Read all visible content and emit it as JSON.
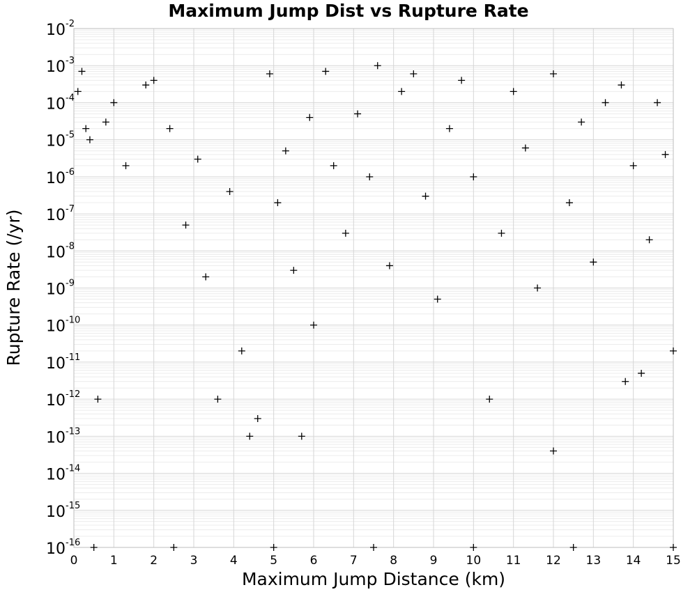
{
  "chart_data": {
    "type": "scatter",
    "title": "Maximum Jump Dist vs Rupture Rate",
    "xlabel": "Maximum Jump Distance (km)",
    "ylabel": "Rupture Rate (/yr)",
    "xlim": [
      0,
      15
    ],
    "ylim": [
      1e-16,
      0.01
    ],
    "yscale": "log",
    "marker": "plus",
    "marker_color": "#000000",
    "grid": true,
    "x_ticks": [
      "0",
      "1",
      "2",
      "3",
      "4",
      "5",
      "6",
      "7",
      "8",
      "9",
      "10",
      "11",
      "12",
      "13",
      "14",
      "15"
    ],
    "y_ticks": [
      {
        "base": "10",
        "exp": "-2"
      },
      {
        "base": "10",
        "exp": "-3"
      },
      {
        "base": "10",
        "exp": "-4"
      },
      {
        "base": "10",
        "exp": "-5"
      },
      {
        "base": "10",
        "exp": "-6"
      },
      {
        "base": "10",
        "exp": "-7"
      },
      {
        "base": "10",
        "exp": "-8"
      },
      {
        "base": "10",
        "exp": "-9"
      },
      {
        "base": "10",
        "exp": "-10"
      },
      {
        "base": "10",
        "exp": "-11"
      },
      {
        "base": "10",
        "exp": "-12"
      },
      {
        "base": "10",
        "exp": "-13"
      },
      {
        "base": "10",
        "exp": "-14"
      },
      {
        "base": "10",
        "exp": "-15"
      },
      {
        "base": "10",
        "exp": "-16"
      }
    ],
    "points": [
      [
        0.1,
        0.0002
      ],
      [
        0.2,
        0.0007
      ],
      [
        0.3,
        2e-05
      ],
      [
        0.4,
        1e-05
      ],
      [
        0.6,
        1e-12
      ],
      [
        0.8,
        3e-05
      ],
      [
        1.0,
        0.0001
      ],
      [
        1.3,
        2e-06
      ],
      [
        1.8,
        0.0003
      ],
      [
        2.0,
        0.0004
      ],
      [
        2.4,
        2e-05
      ],
      [
        2.8,
        5e-08
      ],
      [
        3.1,
        3e-06
      ],
      [
        3.3,
        2e-09
      ],
      [
        3.6,
        1e-12
      ],
      [
        3.9,
        4e-07
      ],
      [
        4.2,
        2e-11
      ],
      [
        4.4,
        1e-13
      ],
      [
        4.6,
        3e-13
      ],
      [
        4.9,
        0.0006
      ],
      [
        5.1,
        2e-07
      ],
      [
        5.3,
        5e-06
      ],
      [
        5.5,
        3e-09
      ],
      [
        5.7,
        1e-13
      ],
      [
        5.9,
        4e-05
      ],
      [
        6.0,
        1e-10
      ],
      [
        6.3,
        0.0007
      ],
      [
        6.5,
        2e-06
      ],
      [
        6.8,
        3e-08
      ],
      [
        7.1,
        5e-05
      ],
      [
        7.4,
        1e-06
      ],
      [
        7.6,
        0.001
      ],
      [
        7.9,
        4e-09
      ],
      [
        8.2,
        0.0002
      ],
      [
        8.5,
        0.0006
      ],
      [
        8.8,
        3e-07
      ],
      [
        9.1,
        5e-10
      ],
      [
        9.4,
        2e-05
      ],
      [
        9.7,
        0.0004
      ],
      [
        10.0,
        1e-06
      ],
      [
        10.4,
        1e-12
      ],
      [
        10.7,
        3e-08
      ],
      [
        11.0,
        0.0002
      ],
      [
        11.3,
        6e-06
      ],
      [
        11.6,
        1e-09
      ],
      [
        12.0,
        0.0006
      ],
      [
        12.0,
        4e-14
      ],
      [
        12.4,
        2e-07
      ],
      [
        12.7,
        3e-05
      ],
      [
        13.0,
        5e-09
      ],
      [
        13.3,
        0.0001
      ],
      [
        13.7,
        0.0003
      ],
      [
        13.8,
        3e-12
      ],
      [
        14.0,
        2e-06
      ],
      [
        14.2,
        5e-12
      ],
      [
        14.4,
        2e-08
      ],
      [
        14.6,
        0.0001
      ],
      [
        14.8,
        4e-06
      ],
      [
        15.0,
        2e-11
      ],
      [
        0.5,
        1e-16
      ],
      [
        2.5,
        1e-16
      ],
      [
        5.0,
        1e-16
      ],
      [
        7.5,
        1e-16
      ],
      [
        10.0,
        1e-16
      ],
      [
        12.5,
        1e-16
      ],
      [
        15.0,
        1e-16
      ]
    ]
  }
}
